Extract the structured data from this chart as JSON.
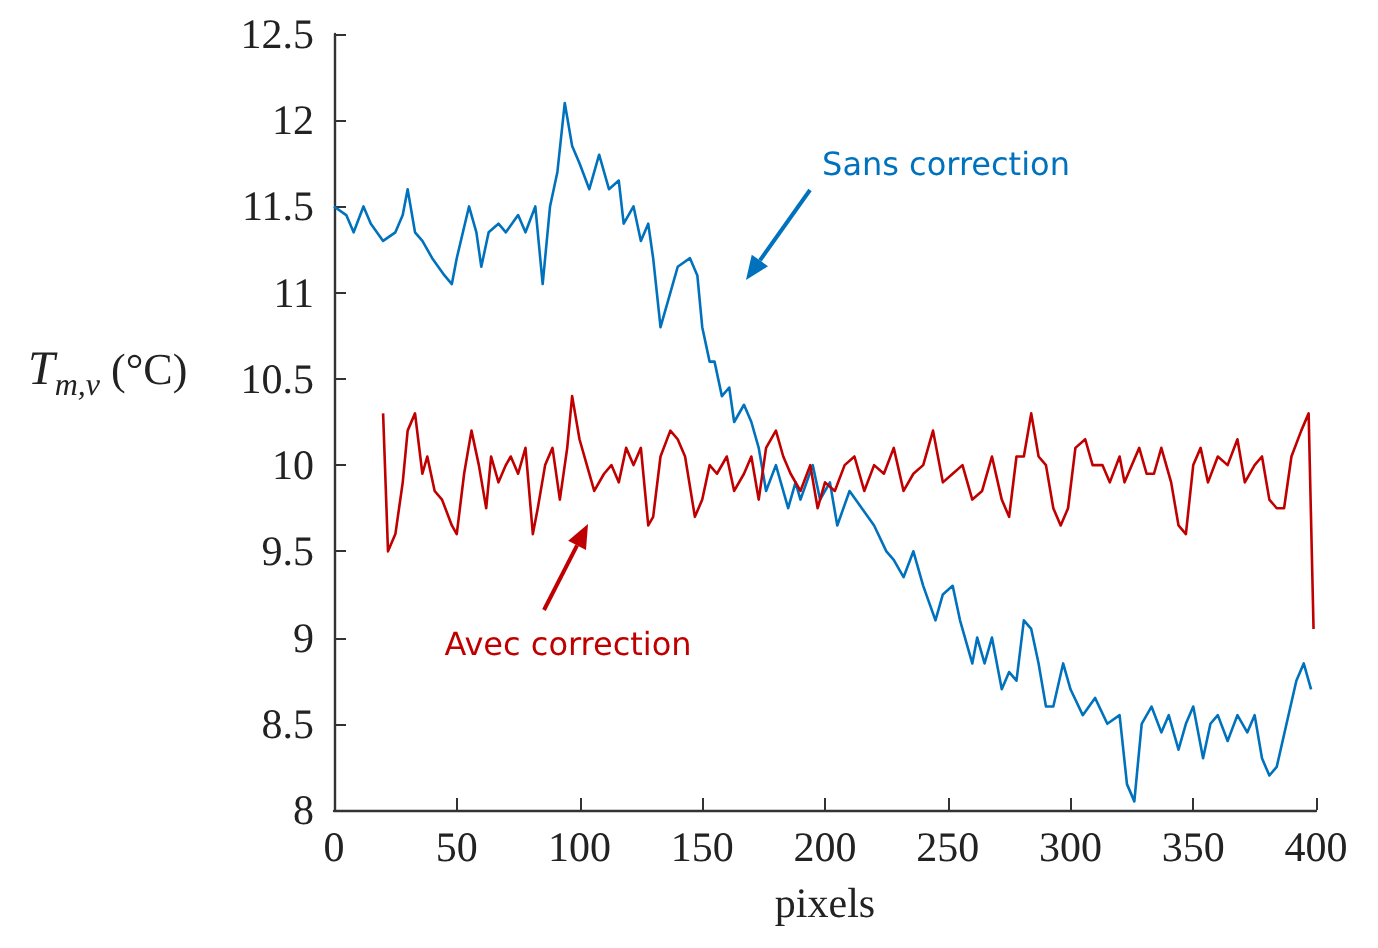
{
  "chart_data": {
    "type": "line",
    "xlabel": "pixels",
    "ylabel": "T$_{m,v}$ (°C)",
    "xlim": [
      0,
      400
    ],
    "xticks": [
      0,
      50,
      100,
      150,
      200,
      250,
      300,
      350,
      400
    ],
    "ylim": [
      8,
      12.5
    ],
    "yticks": [
      8,
      8.5,
      9,
      9.5,
      10,
      10.5,
      11,
      11.5,
      12,
      12.5
    ],
    "grid": false,
    "marker": "none",
    "line_style": "solid",
    "annotations": [
      "Sans correction",
      "Avec correction"
    ],
    "series": [
      {
        "color": "#0072bd",
        "x": [
          0,
          5,
          8,
          12,
          15,
          20,
          25,
          28,
          30,
          33,
          36,
          40,
          45,
          48,
          50,
          55,
          58,
          60,
          63,
          67,
          70,
          75,
          78,
          82,
          85,
          88,
          91,
          94,
          97,
          100,
          104,
          108,
          112,
          116,
          118,
          122,
          125,
          128,
          130,
          133,
          136,
          140,
          145,
          148,
          150,
          153,
          155,
          158,
          161,
          163,
          167,
          170,
          173,
          176,
          180,
          185,
          188,
          190,
          195,
          198,
          202,
          205,
          210,
          215,
          220,
          225,
          228,
          232,
          236,
          240,
          245,
          248,
          252,
          255,
          260,
          262,
          265,
          268,
          272,
          275,
          278,
          281,
          284,
          287,
          290,
          293,
          297,
          300,
          305,
          310,
          315,
          320,
          323,
          326,
          329,
          333,
          337,
          340,
          344,
          347,
          350,
          354,
          357,
          360,
          364,
          368,
          372,
          375,
          378,
          381,
          384,
          388,
          392,
          395,
          398
        ],
        "values": [
          11.5,
          11.45,
          11.35,
          11.5,
          11.4,
          11.3,
          11.35,
          11.45,
          11.6,
          11.35,
          11.3,
          11.2,
          11.1,
          11.05,
          11.2,
          11.5,
          11.35,
          11.15,
          11.35,
          11.4,
          11.35,
          11.45,
          11.35,
          11.5,
          11.05,
          11.5,
          11.7,
          12.1,
          11.85,
          11.75,
          11.6,
          11.8,
          11.6,
          11.65,
          11.4,
          11.5,
          11.3,
          11.4,
          11.2,
          10.8,
          10.95,
          11.15,
          11.2,
          11.1,
          10.8,
          10.6,
          10.6,
          10.4,
          10.45,
          10.25,
          10.35,
          10.25,
          10.1,
          9.85,
          10,
          9.75,
          9.9,
          9.8,
          10,
          9.8,
          9.9,
          9.65,
          9.85,
          9.75,
          9.65,
          9.5,
          9.45,
          9.35,
          9.5,
          9.3,
          9.1,
          9.25,
          9.3,
          9.1,
          8.85,
          9,
          8.85,
          9,
          8.7,
          8.8,
          8.75,
          9.1,
          9.05,
          8.85,
          8.6,
          8.6,
          8.85,
          8.7,
          8.55,
          8.65,
          8.5,
          8.55,
          8.15,
          8.05,
          8.5,
          8.6,
          8.45,
          8.55,
          8.35,
          8.5,
          8.6,
          8.3,
          8.5,
          8.55,
          8.4,
          8.55,
          8.45,
          8.55,
          8.3,
          8.2,
          8.25,
          8.5,
          8.75,
          8.85,
          8.7
        ]
      },
      {
        "color": "#c00000",
        "x": [
          20,
          22,
          25,
          28,
          30,
          33,
          36,
          38,
          41,
          44,
          48,
          50,
          53,
          56,
          59,
          62,
          64,
          67,
          70,
          72,
          75,
          78,
          81,
          83,
          86,
          89,
          92,
          95,
          97,
          100,
          103,
          106,
          110,
          113,
          116,
          119,
          122,
          125,
          128,
          130,
          133,
          137,
          140,
          143,
          147,
          150,
          153,
          156,
          160,
          163,
          167,
          170,
          173,
          176,
          180,
          183,
          186,
          190,
          194,
          197,
          200,
          204,
          208,
          212,
          216,
          220,
          224,
          228,
          232,
          236,
          240,
          244,
          248,
          252,
          256,
          260,
          264,
          268,
          272,
          275,
          278,
          281,
          284,
          287,
          290,
          293,
          296,
          299,
          302,
          306,
          309,
          313,
          316,
          320,
          322,
          325,
          328,
          331,
          334,
          337,
          341,
          344,
          347,
          350,
          353,
          356,
          360,
          364,
          368,
          371,
          375,
          378,
          381,
          384,
          387,
          390,
          394,
          397,
          399
        ],
        "values": [
          10.3,
          9.5,
          9.6,
          9.9,
          10.2,
          10.3,
          9.95,
          10.05,
          9.85,
          9.8,
          9.65,
          9.6,
          9.95,
          10.2,
          10,
          9.75,
          10.05,
          9.9,
          10,
          10.05,
          9.95,
          10.1,
          9.6,
          9.75,
          10,
          10.1,
          9.8,
          10.1,
          10.4,
          10.15,
          10,
          9.85,
          9.95,
          10,
          9.9,
          10.1,
          10,
          10.1,
          9.65,
          9.7,
          10.05,
          10.2,
          10.15,
          10.05,
          9.7,
          9.8,
          10,
          9.95,
          10.05,
          9.85,
          9.95,
          10.05,
          9.8,
          10.1,
          10.2,
          10.05,
          9.95,
          9.85,
          10,
          9.75,
          9.9,
          9.85,
          10,
          10.05,
          9.85,
          10,
          9.95,
          10.1,
          9.85,
          9.95,
          10,
          10.2,
          9.9,
          9.95,
          10,
          9.8,
          9.85,
          10.05,
          9.8,
          9.7,
          10.05,
          10.05,
          10.3,
          10.05,
          10,
          9.75,
          9.65,
          9.75,
          10.1,
          10.15,
          10,
          10,
          9.9,
          10.05,
          9.9,
          10,
          10.1,
          9.95,
          9.95,
          10.1,
          9.9,
          9.65,
          9.6,
          10,
          10.1,
          9.9,
          10.05,
          10,
          10.15,
          9.9,
          10,
          10.05,
          9.8,
          9.75,
          9.75,
          10.05,
          10.2,
          10.3,
          9.05
        ]
      }
    ]
  }
}
